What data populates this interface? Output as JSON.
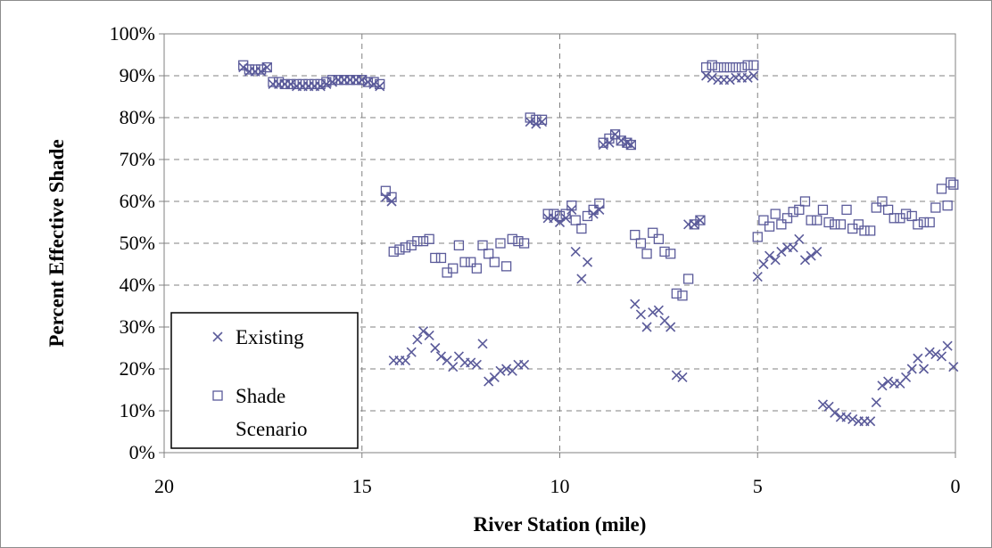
{
  "chart_data": {
    "type": "scatter",
    "title": "",
    "xlabel": "River Station (mile)",
    "ylabel": "Percent Effective Shade",
    "xlim": [
      20,
      0
    ],
    "ylim": [
      0,
      100
    ],
    "x_ticks": [
      "20",
      "15",
      "10",
      "5",
      "0"
    ],
    "y_ticks": [
      "0%",
      "10%",
      "20%",
      "30%",
      "40%",
      "50%",
      "60%",
      "70%",
      "80%",
      "90%",
      "100%"
    ],
    "grid": true,
    "legend": "bottom-left",
    "marker_color": "#5b5b9a",
    "series": [
      {
        "name": "Existing",
        "marker": "x",
        "points": [
          [
            18.0,
            92
          ],
          [
            17.85,
            91
          ],
          [
            17.7,
            91
          ],
          [
            17.55,
            91
          ],
          [
            17.4,
            92
          ],
          [
            17.25,
            88
          ],
          [
            17.1,
            88
          ],
          [
            16.95,
            88
          ],
          [
            16.8,
            88
          ],
          [
            16.65,
            87.5
          ],
          [
            16.5,
            87.5
          ],
          [
            16.35,
            87.5
          ],
          [
            16.2,
            87.5
          ],
          [
            16.05,
            87.5
          ],
          [
            15.9,
            88
          ],
          [
            15.75,
            88.5
          ],
          [
            15.6,
            89
          ],
          [
            15.45,
            89
          ],
          [
            15.3,
            89
          ],
          [
            15.15,
            89
          ],
          [
            15.0,
            89
          ],
          [
            14.85,
            88.5
          ],
          [
            14.7,
            88
          ],
          [
            14.55,
            87.5
          ],
          [
            14.4,
            61
          ],
          [
            14.25,
            60
          ],
          [
            14.2,
            22
          ],
          [
            14.05,
            22
          ],
          [
            13.9,
            22
          ],
          [
            13.75,
            24
          ],
          [
            13.6,
            27
          ],
          [
            13.45,
            29
          ],
          [
            13.3,
            28
          ],
          [
            13.15,
            25
          ],
          [
            13.0,
            23
          ],
          [
            12.85,
            22
          ],
          [
            12.7,
            20.5
          ],
          [
            12.55,
            23
          ],
          [
            12.4,
            21.5
          ],
          [
            12.25,
            21.5
          ],
          [
            12.1,
            21
          ],
          [
            11.95,
            26
          ],
          [
            11.8,
            17
          ],
          [
            11.65,
            18
          ],
          [
            11.5,
            19.5
          ],
          [
            11.35,
            20
          ],
          [
            11.2,
            19.5
          ],
          [
            11.05,
            21
          ],
          [
            10.9,
            21
          ],
          [
            10.75,
            79
          ],
          [
            10.6,
            78.5
          ],
          [
            10.45,
            79
          ],
          [
            10.3,
            56
          ],
          [
            10.15,
            56
          ],
          [
            10.0,
            55
          ],
          [
            9.85,
            56
          ],
          [
            9.7,
            58
          ],
          [
            9.6,
            48
          ],
          [
            9.45,
            41.5
          ],
          [
            9.3,
            45.5
          ],
          [
            9.15,
            57
          ],
          [
            9.0,
            58
          ],
          [
            8.9,
            73.5
          ],
          [
            8.75,
            74
          ],
          [
            8.6,
            76
          ],
          [
            8.45,
            74.5
          ],
          [
            8.3,
            74
          ],
          [
            8.2,
            73.5
          ],
          [
            8.1,
            35.5
          ],
          [
            7.95,
            33
          ],
          [
            7.8,
            30
          ],
          [
            7.65,
            33.5
          ],
          [
            7.5,
            34
          ],
          [
            7.35,
            31.5
          ],
          [
            7.2,
            30
          ],
          [
            7.05,
            18.5
          ],
          [
            6.9,
            18
          ],
          [
            6.75,
            54.5
          ],
          [
            6.6,
            54.5
          ],
          [
            6.45,
            55.5
          ],
          [
            6.3,
            90
          ],
          [
            6.15,
            89.5
          ],
          [
            6.0,
            89
          ],
          [
            5.85,
            89
          ],
          [
            5.7,
            89
          ],
          [
            5.55,
            89.5
          ],
          [
            5.4,
            89.5
          ],
          [
            5.25,
            89.5
          ],
          [
            5.1,
            90
          ],
          [
            5.0,
            42
          ],
          [
            4.85,
            45
          ],
          [
            4.7,
            47
          ],
          [
            4.55,
            46
          ],
          [
            4.4,
            48
          ],
          [
            4.25,
            49
          ],
          [
            4.1,
            49
          ],
          [
            3.95,
            51
          ],
          [
            3.8,
            46
          ],
          [
            3.65,
            47
          ],
          [
            3.5,
            48
          ],
          [
            3.35,
            11.5
          ],
          [
            3.2,
            11
          ],
          [
            3.05,
            9.5
          ],
          [
            2.9,
            8.5
          ],
          [
            2.75,
            8.5
          ],
          [
            2.6,
            8
          ],
          [
            2.45,
            7.5
          ],
          [
            2.3,
            7.5
          ],
          [
            2.15,
            7.5
          ],
          [
            2.0,
            12
          ],
          [
            1.85,
            16
          ],
          [
            1.7,
            17
          ],
          [
            1.55,
            16.5
          ],
          [
            1.4,
            16.5
          ],
          [
            1.25,
            18
          ],
          [
            1.1,
            20
          ],
          [
            0.95,
            22.5
          ],
          [
            0.8,
            20
          ],
          [
            0.65,
            24
          ],
          [
            0.5,
            23.5
          ],
          [
            0.35,
            23
          ],
          [
            0.2,
            25.5
          ],
          [
            0.05,
            20.5
          ]
        ]
      },
      {
        "name": "Shade Scenario",
        "marker": "square",
        "points": [
          [
            18.0,
            92.5
          ],
          [
            17.85,
            91.5
          ],
          [
            17.7,
            91.5
          ],
          [
            17.55,
            91.5
          ],
          [
            17.4,
            92
          ],
          [
            17.25,
            88.5
          ],
          [
            17.1,
            88.5
          ],
          [
            16.95,
            88
          ],
          [
            16.8,
            88
          ],
          [
            16.65,
            88
          ],
          [
            16.5,
            88
          ],
          [
            16.35,
            88
          ],
          [
            16.2,
            88
          ],
          [
            16.05,
            88
          ],
          [
            15.9,
            88.5
          ],
          [
            15.75,
            89
          ],
          [
            15.6,
            89
          ],
          [
            15.45,
            89
          ],
          [
            15.3,
            89
          ],
          [
            15.15,
            89
          ],
          [
            15.0,
            89
          ],
          [
            14.85,
            88.5
          ],
          [
            14.7,
            88.5
          ],
          [
            14.55,
            88
          ],
          [
            14.4,
            62.5
          ],
          [
            14.25,
            61
          ],
          [
            14.2,
            48
          ],
          [
            14.05,
            48.5
          ],
          [
            13.9,
            49
          ],
          [
            13.75,
            49.5
          ],
          [
            13.6,
            50.5
          ],
          [
            13.45,
            50.5
          ],
          [
            13.3,
            51
          ],
          [
            13.15,
            46.5
          ],
          [
            13.0,
            46.5
          ],
          [
            12.85,
            43
          ],
          [
            12.7,
            44
          ],
          [
            12.55,
            49.5
          ],
          [
            12.4,
            45.5
          ],
          [
            12.25,
            45.5
          ],
          [
            12.1,
            44
          ],
          [
            11.95,
            49.5
          ],
          [
            11.8,
            47.5
          ],
          [
            11.65,
            45.5
          ],
          [
            11.5,
            50
          ],
          [
            11.35,
            44.5
          ],
          [
            11.2,
            51
          ],
          [
            11.05,
            50.5
          ],
          [
            10.9,
            50
          ],
          [
            10.75,
            80
          ],
          [
            10.6,
            79.5
          ],
          [
            10.45,
            79.5
          ],
          [
            10.3,
            57
          ],
          [
            10.15,
            57
          ],
          [
            10.0,
            56.5
          ],
          [
            9.85,
            57
          ],
          [
            9.7,
            59
          ],
          [
            9.6,
            55.5
          ],
          [
            9.45,
            53.5
          ],
          [
            9.3,
            56.5
          ],
          [
            9.15,
            58
          ],
          [
            9.0,
            59.5
          ],
          [
            8.9,
            74
          ],
          [
            8.75,
            75
          ],
          [
            8.6,
            76
          ],
          [
            8.45,
            74.5
          ],
          [
            8.3,
            74
          ],
          [
            8.2,
            73.5
          ],
          [
            8.1,
            52
          ],
          [
            7.95,
            50
          ],
          [
            7.8,
            47.5
          ],
          [
            7.65,
            52.5
          ],
          [
            7.5,
            51
          ],
          [
            7.35,
            48
          ],
          [
            7.2,
            47.5
          ],
          [
            7.05,
            38
          ],
          [
            6.9,
            37.5
          ],
          [
            6.75,
            41.5
          ],
          [
            6.6,
            54.5
          ],
          [
            6.45,
            55.5
          ],
          [
            6.3,
            92
          ],
          [
            6.15,
            92.5
          ],
          [
            6.0,
            92
          ],
          [
            5.85,
            92
          ],
          [
            5.7,
            92
          ],
          [
            5.55,
            92
          ],
          [
            5.4,
            92
          ],
          [
            5.25,
            92.5
          ],
          [
            5.1,
            92.5
          ],
          [
            5.0,
            51.5
          ],
          [
            4.85,
            55.5
          ],
          [
            4.7,
            54
          ],
          [
            4.55,
            57
          ],
          [
            4.4,
            54.5
          ],
          [
            4.25,
            56
          ],
          [
            4.1,
            57.5
          ],
          [
            3.95,
            58
          ],
          [
            3.8,
            60
          ],
          [
            3.65,
            55.5
          ],
          [
            3.5,
            55.5
          ],
          [
            3.35,
            58
          ],
          [
            3.2,
            55
          ],
          [
            3.05,
            54.5
          ],
          [
            2.9,
            54.5
          ],
          [
            2.75,
            58
          ],
          [
            2.6,
            53.5
          ],
          [
            2.45,
            54.5
          ],
          [
            2.3,
            53
          ],
          [
            2.15,
            53
          ],
          [
            2.0,
            58.5
          ],
          [
            1.85,
            60
          ],
          [
            1.7,
            58
          ],
          [
            1.55,
            56
          ],
          [
            1.4,
            56
          ],
          [
            1.25,
            57
          ],
          [
            1.1,
            56.5
          ],
          [
            0.95,
            54.5
          ],
          [
            0.8,
            55
          ],
          [
            0.65,
            55
          ],
          [
            0.5,
            58.5
          ],
          [
            0.35,
            63
          ],
          [
            0.2,
            59
          ],
          [
            0.12,
            64.5
          ],
          [
            0.05,
            64
          ]
        ]
      }
    ]
  }
}
